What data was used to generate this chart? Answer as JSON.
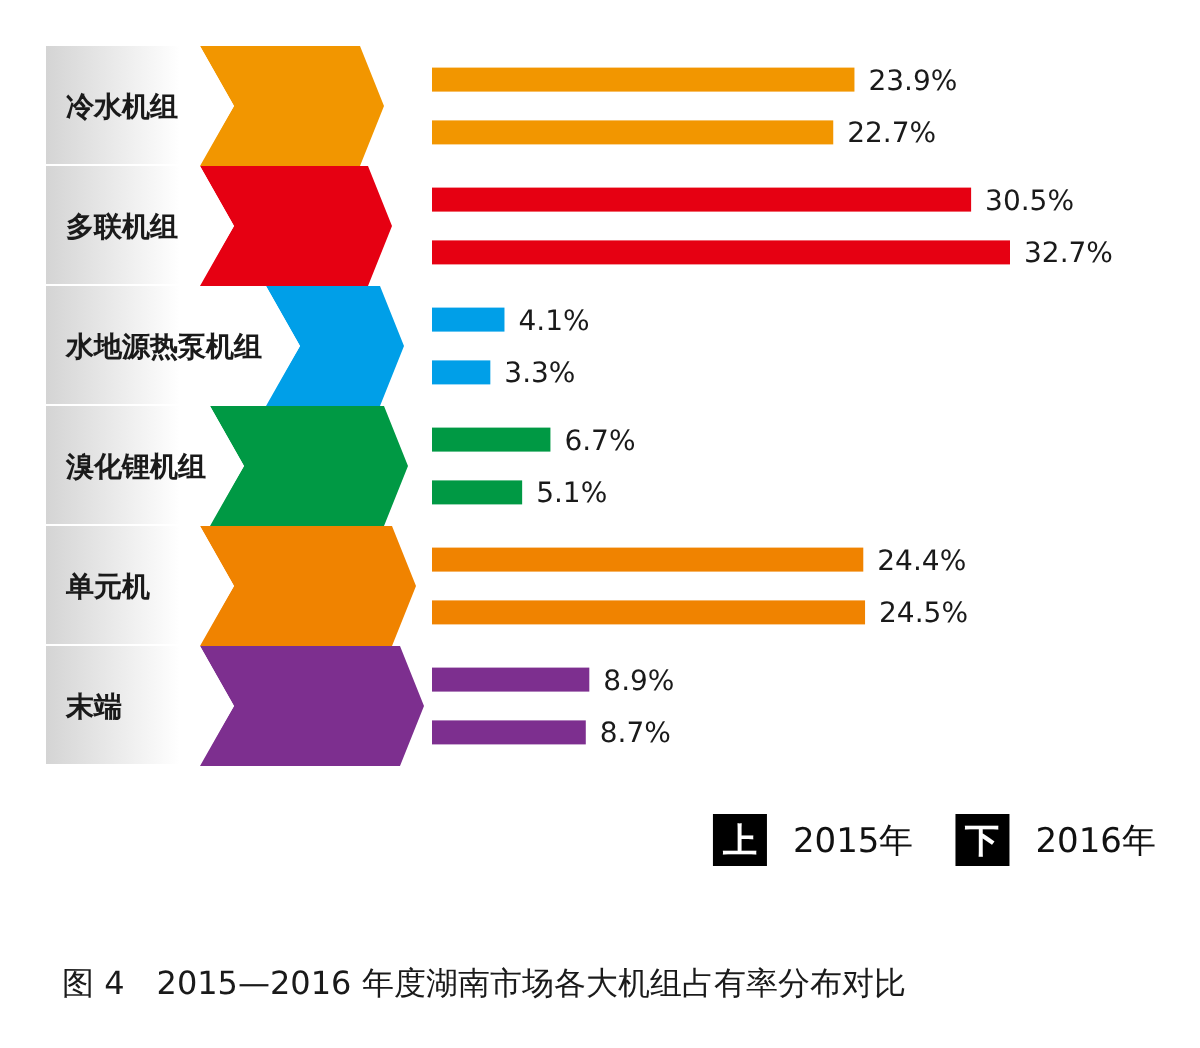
{
  "chart_data": {
    "type": "bar",
    "orientation": "horizontal",
    "title": "图 4　2015—2016 年度湖南市场各大机组占有率分布对比",
    "categories": [
      "冷水机组",
      "多联机组",
      "水地源热泵机组",
      "溴化锂机组",
      "单元机",
      "末端"
    ],
    "series": [
      {
        "name": "2015年",
        "colors": [
          "#f29600",
          "#e60012",
          "#009fe8",
          "#009944",
          "#f08300",
          "#7d2f8f"
        ],
        "values": [
          23.9,
          30.5,
          4.1,
          6.7,
          24.4,
          8.9
        ],
        "value_labels": [
          "23.9%",
          "30.5%",
          "4.1%",
          "6.7%",
          "24.4%",
          "8.9%"
        ]
      },
      {
        "name": "2016年",
        "colors": [
          "#f29600",
          "#e60012",
          "#009fe8",
          "#009944",
          "#f08300",
          "#7d2f8f"
        ],
        "values": [
          22.7,
          32.7,
          3.3,
          5.1,
          24.5,
          8.7
        ],
        "value_labels": [
          "22.7%",
          "32.7%",
          "3.3%",
          "5.1%",
          "24.5%",
          "8.7%"
        ]
      }
    ],
    "legend": "bottom right",
    "annotations": [
      "上",
      "下"
    ]
  }
}
